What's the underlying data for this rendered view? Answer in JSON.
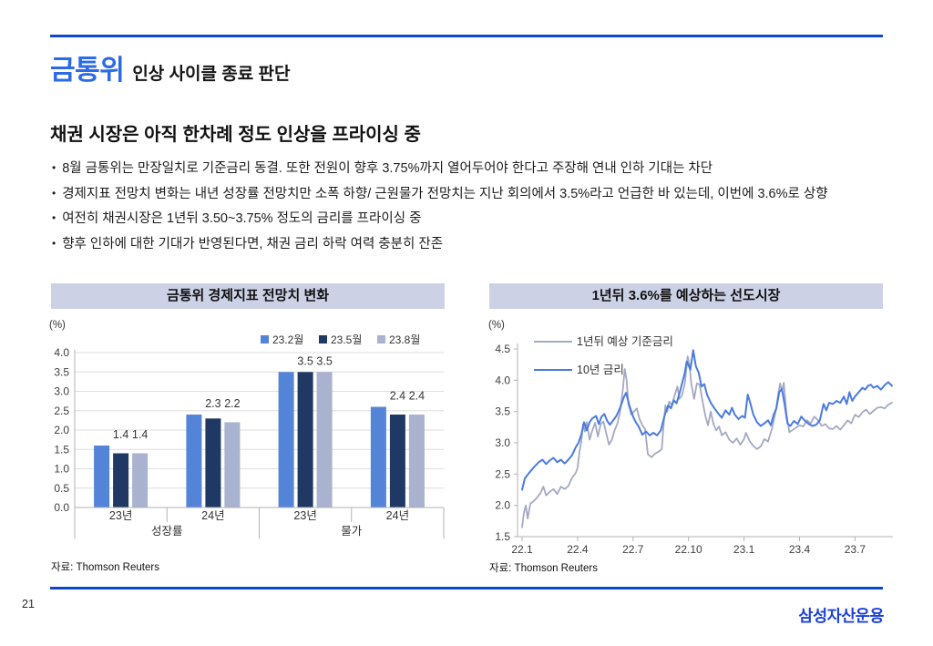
{
  "header": {
    "title_accent": "금통위",
    "title_rest": "인상 사이클 종료 판단",
    "accent_color": "#2c6ae6",
    "rule_color": "#0d48cc"
  },
  "subtitle": "채권 시장은 아직 한차례 정도 인상을 프라이싱 중",
  "bullets": [
    "8월 금통위는 만장일치로 기준금리 동결. 또한  전원이 향후 3.75%까지 열어두어야 한다고 주장해 연내 인하 기대는 차단",
    "경제지표 전망치 변화는 내년 성장률 전망치만 소폭 하향/ 근원물가 전망치는 지난 회의에서 3.5%라고 언급한 바 있는데, 이번에 3.6%로 상향",
    "여전히 채권시장은 1년뒤 3.50~3.75% 정도의 금리를 프라이싱 중",
    "향후 인하에 대한 기대가 반영된다면,  채권 금리 하락 여력 충분히 잔존"
  ],
  "chart_data": [
    {
      "type": "bar",
      "title": "금통위 경제지표 전망치 변화",
      "unit": "(%)",
      "source": "자료: Thomson Reuters",
      "header_bg": "#cdd1e6",
      "ylim": [
        0,
        4.0
      ],
      "ytick_step": 0.5,
      "grid": true,
      "legend_position": "top-right",
      "series": [
        {
          "name": "23.2월",
          "color": "#5484d8"
        },
        {
          "name": "23.5월",
          "color": "#1f3864"
        },
        {
          "name": "23.8월",
          "color": "#a9b2ce"
        }
      ],
      "groups": [
        {
          "tier1": "23년",
          "tier2": "성장률",
          "values": [
            1.6,
            1.4,
            1.4
          ],
          "labels": [
            null,
            "1.4",
            "1.4"
          ]
        },
        {
          "tier1": "24년",
          "tier2": "성장률",
          "values": [
            2.4,
            2.3,
            2.2
          ],
          "labels": [
            null,
            "2.3",
            "2.2"
          ]
        },
        {
          "tier1": "23년",
          "tier2": "물가",
          "values": [
            3.5,
            3.5,
            3.5
          ],
          "labels": [
            null,
            "3.5",
            "3.5"
          ]
        },
        {
          "tier1": "24년",
          "tier2": "물가",
          "values": [
            2.6,
            2.4,
            2.4
          ],
          "labels": [
            null,
            "2.4",
            "2.4"
          ]
        }
      ],
      "tier2_spans": [
        {
          "label": "성장률",
          "from": 0,
          "to": 2
        },
        {
          "label": "물가",
          "from": 2,
          "to": 4
        }
      ]
    },
    {
      "type": "line",
      "title": "1년뒤 3.6%를 예상하는 선도시장",
      "unit": "(%)",
      "source": "자료: Thomson Reuters",
      "header_bg": "#cdd1e6",
      "ylim": [
        1.5,
        4.5
      ],
      "yticks": [
        1.5,
        2.0,
        2.5,
        3.0,
        3.5,
        4.0,
        4.5
      ],
      "grid": false,
      "legend_position": "top-left",
      "xticks": [
        {
          "m": 0,
          "label": "22.1"
        },
        {
          "m": 3,
          "label": "22.4"
        },
        {
          "m": 6,
          "label": "22.7"
        },
        {
          "m": 9,
          "label": "22.10"
        },
        {
          "m": 12,
          "label": "23.1"
        },
        {
          "m": 15,
          "label": "23.4"
        },
        {
          "m": 18,
          "label": "23.7"
        }
      ],
      "series": [
        {
          "name": "1년뒤 예상 기준금리",
          "color": "#a3a9c2",
          "width": 1.8,
          "points": [
            [
              0,
              1.65
            ],
            [
              0.1,
              1.88
            ],
            [
              0.2,
              2.0
            ],
            [
              0.3,
              1.79
            ],
            [
              0.45,
              2.03
            ],
            [
              0.6,
              2.06
            ],
            [
              0.8,
              2.12
            ],
            [
              1.0,
              2.2
            ],
            [
              1.15,
              2.3
            ],
            [
              1.3,
              2.16
            ],
            [
              1.5,
              2.22
            ],
            [
              1.7,
              2.26
            ],
            [
              1.9,
              2.18
            ],
            [
              2.1,
              2.3
            ],
            [
              2.3,
              2.26
            ],
            [
              2.5,
              2.31
            ],
            [
              2.7,
              2.44
            ],
            [
              2.9,
              2.52
            ],
            [
              3.0,
              2.6
            ],
            [
              3.1,
              2.85
            ],
            [
              3.2,
              3.02
            ],
            [
              3.3,
              3.3
            ],
            [
              3.4,
              3.18
            ],
            [
              3.5,
              3.33
            ],
            [
              3.65,
              3.05
            ],
            [
              3.8,
              3.2
            ],
            [
              3.95,
              3.32
            ],
            [
              4.1,
              3.1
            ],
            [
              4.25,
              3.3
            ],
            [
              4.4,
              3.34
            ],
            [
              4.55,
              3.15
            ],
            [
              4.7,
              2.97
            ],
            [
              4.85,
              3.05
            ],
            [
              5.0,
              3.2
            ],
            [
              5.15,
              3.3
            ],
            [
              5.3,
              3.5
            ],
            [
              5.45,
              3.85
            ],
            [
              5.55,
              4.18
            ],
            [
              5.65,
              4.0
            ],
            [
              5.75,
              3.62
            ],
            [
              5.9,
              3.45
            ],
            [
              6.05,
              3.5
            ],
            [
              6.2,
              3.55
            ],
            [
              6.35,
              3.38
            ],
            [
              6.5,
              3.28
            ],
            [
              6.65,
              3.22
            ],
            [
              6.8,
              2.82
            ],
            [
              7.0,
              2.77
            ],
            [
              7.2,
              2.83
            ],
            [
              7.4,
              2.86
            ],
            [
              7.55,
              2.9
            ],
            [
              7.65,
              3.28
            ],
            [
              7.75,
              3.6
            ],
            [
              7.85,
              3.5
            ],
            [
              7.95,
              3.66
            ],
            [
              8.1,
              3.6
            ],
            [
              8.25,
              3.76
            ],
            [
              8.4,
              3.9
            ],
            [
              8.5,
              3.7
            ],
            [
              8.65,
              3.76
            ],
            [
              8.8,
              3.95
            ],
            [
              8.95,
              4.38
            ],
            [
              9.05,
              4.25
            ],
            [
              9.15,
              3.95
            ],
            [
              9.3,
              3.7
            ],
            [
              9.45,
              3.95
            ],
            [
              9.6,
              3.93
            ],
            [
              9.75,
              3.68
            ],
            [
              9.9,
              3.44
            ],
            [
              10.05,
              3.28
            ],
            [
              10.2,
              3.5
            ],
            [
              10.35,
              3.3
            ],
            [
              10.5,
              3.2
            ],
            [
              10.65,
              3.26
            ],
            [
              10.8,
              3.12
            ],
            [
              11.0,
              3.17
            ],
            [
              11.2,
              3.05
            ],
            [
              11.4,
              3.0
            ],
            [
              11.6,
              3.07
            ],
            [
              11.8,
              2.97
            ],
            [
              12.0,
              3.06
            ],
            [
              12.1,
              3.16
            ],
            [
              12.3,
              3.03
            ],
            [
              12.5,
              2.95
            ],
            [
              12.7,
              2.9
            ],
            [
              12.9,
              2.94
            ],
            [
              13.1,
              3.06
            ],
            [
              13.3,
              3.02
            ],
            [
              13.5,
              3.22
            ],
            [
              13.7,
              3.48
            ],
            [
              13.85,
              3.78
            ],
            [
              13.95,
              3.95
            ],
            [
              14.05,
              3.82
            ],
            [
              14.15,
              3.96
            ],
            [
              14.3,
              3.45
            ],
            [
              14.45,
              3.17
            ],
            [
              14.6,
              3.2
            ],
            [
              14.8,
              3.24
            ],
            [
              15.0,
              3.28
            ],
            [
              15.2,
              3.26
            ],
            [
              15.4,
              3.36
            ],
            [
              15.6,
              3.31
            ],
            [
              15.8,
              3.42
            ],
            [
              16.0,
              3.36
            ],
            [
              16.2,
              3.27
            ],
            [
              16.4,
              3.3
            ],
            [
              16.6,
              3.23
            ],
            [
              16.8,
              3.22
            ],
            [
              17.0,
              3.27
            ],
            [
              17.2,
              3.21
            ],
            [
              17.4,
              3.28
            ],
            [
              17.6,
              3.36
            ],
            [
              17.8,
              3.31
            ],
            [
              18.0,
              3.45
            ],
            [
              18.2,
              3.41
            ],
            [
              18.4,
              3.49
            ],
            [
              18.6,
              3.53
            ],
            [
              18.8,
              3.46
            ],
            [
              19.0,
              3.51
            ],
            [
              19.2,
              3.56
            ],
            [
              19.4,
              3.57
            ],
            [
              19.6,
              3.55
            ],
            [
              19.8,
              3.61
            ],
            [
              20.0,
              3.64
            ]
          ]
        },
        {
          "name": "10년 금리",
          "color": "#4b7be0",
          "width": 2,
          "points": [
            [
              0,
              2.25
            ],
            [
              0.15,
              2.43
            ],
            [
              0.3,
              2.49
            ],
            [
              0.5,
              2.56
            ],
            [
              0.7,
              2.63
            ],
            [
              0.9,
              2.69
            ],
            [
              1.1,
              2.73
            ],
            [
              1.3,
              2.66
            ],
            [
              1.5,
              2.72
            ],
            [
              1.7,
              2.76
            ],
            [
              1.9,
              2.69
            ],
            [
              2.1,
              2.73
            ],
            [
              2.3,
              2.67
            ],
            [
              2.5,
              2.73
            ],
            [
              2.7,
              2.8
            ],
            [
              2.9,
              2.93
            ],
            [
              3.05,
              3.0
            ],
            [
              3.2,
              3.13
            ],
            [
              3.35,
              3.33
            ],
            [
              3.5,
              3.2
            ],
            [
              3.65,
              3.33
            ],
            [
              3.8,
              3.39
            ],
            [
              4.0,
              3.43
            ],
            [
              4.15,
              3.3
            ],
            [
              4.3,
              3.42
            ],
            [
              4.45,
              3.46
            ],
            [
              4.6,
              3.35
            ],
            [
              4.75,
              3.29
            ],
            [
              4.9,
              3.35
            ],
            [
              5.1,
              3.43
            ],
            [
              5.3,
              3.56
            ],
            [
              5.5,
              3.73
            ],
            [
              5.62,
              3.8
            ],
            [
              5.8,
              3.6
            ],
            [
              6.0,
              3.42
            ],
            [
              6.15,
              3.33
            ],
            [
              6.3,
              3.26
            ],
            [
              6.5,
              3.13
            ],
            [
              6.7,
              3.18
            ],
            [
              6.9,
              3.12
            ],
            [
              7.1,
              3.16
            ],
            [
              7.3,
              3.12
            ],
            [
              7.5,
              3.2
            ],
            [
              7.7,
              3.43
            ],
            [
              7.9,
              3.6
            ],
            [
              8.05,
              3.55
            ],
            [
              8.2,
              3.68
            ],
            [
              8.35,
              3.63
            ],
            [
              8.5,
              3.78
            ],
            [
              8.65,
              3.95
            ],
            [
              8.8,
              4.12
            ],
            [
              8.9,
              4.3
            ],
            [
              9.0,
              4.24
            ],
            [
              9.1,
              4.17
            ],
            [
              9.25,
              4.48
            ],
            [
              9.4,
              4.22
            ],
            [
              9.55,
              4.12
            ],
            [
              9.7,
              3.9
            ],
            [
              9.85,
              3.94
            ],
            [
              10.0,
              3.77
            ],
            [
              10.2,
              3.64
            ],
            [
              10.4,
              3.55
            ],
            [
              10.6,
              3.47
            ],
            [
              10.8,
              3.4
            ],
            [
              11.0,
              3.52
            ],
            [
              11.2,
              3.45
            ],
            [
              11.35,
              3.56
            ],
            [
              11.5,
              3.45
            ],
            [
              11.7,
              3.38
            ],
            [
              11.9,
              3.43
            ],
            [
              12.05,
              3.4
            ],
            [
              12.2,
              3.77
            ],
            [
              12.35,
              3.62
            ],
            [
              12.5,
              3.45
            ],
            [
              12.7,
              3.33
            ],
            [
              12.9,
              3.27
            ],
            [
              13.1,
              3.31
            ],
            [
              13.3,
              3.36
            ],
            [
              13.45,
              3.28
            ],
            [
              13.6,
              3.45
            ],
            [
              13.75,
              3.55
            ],
            [
              13.9,
              3.81
            ],
            [
              14.05,
              3.86
            ],
            [
              14.2,
              3.6
            ],
            [
              14.35,
              3.31
            ],
            [
              14.5,
              3.27
            ],
            [
              14.7,
              3.35
            ],
            [
              14.9,
              3.3
            ],
            [
              15.1,
              3.42
            ],
            [
              15.3,
              3.35
            ],
            [
              15.5,
              3.3
            ],
            [
              15.7,
              3.27
            ],
            [
              15.9,
              3.29
            ],
            [
              16.1,
              3.36
            ],
            [
              16.3,
              3.62
            ],
            [
              16.45,
              3.52
            ],
            [
              16.6,
              3.64
            ],
            [
              16.8,
              3.62
            ],
            [
              17.0,
              3.67
            ],
            [
              17.2,
              3.64
            ],
            [
              17.4,
              3.74
            ],
            [
              17.55,
              3.62
            ],
            [
              17.7,
              3.81
            ],
            [
              17.85,
              3.67
            ],
            [
              18.0,
              3.74
            ],
            [
              18.2,
              3.81
            ],
            [
              18.4,
              3.88
            ],
            [
              18.55,
              3.85
            ],
            [
              18.7,
              3.91
            ],
            [
              18.85,
              3.93
            ],
            [
              19.0,
              3.88
            ],
            [
              19.2,
              3.91
            ],
            [
              19.4,
              3.85
            ],
            [
              19.6,
              3.92
            ],
            [
              19.8,
              3.97
            ],
            [
              20.0,
              3.91
            ]
          ]
        }
      ]
    }
  ],
  "footer": {
    "page_number": "21",
    "logo_text": "삼성자산운용",
    "logo_color": "#1c40d8",
    "rule_color": "#0d48cc"
  }
}
